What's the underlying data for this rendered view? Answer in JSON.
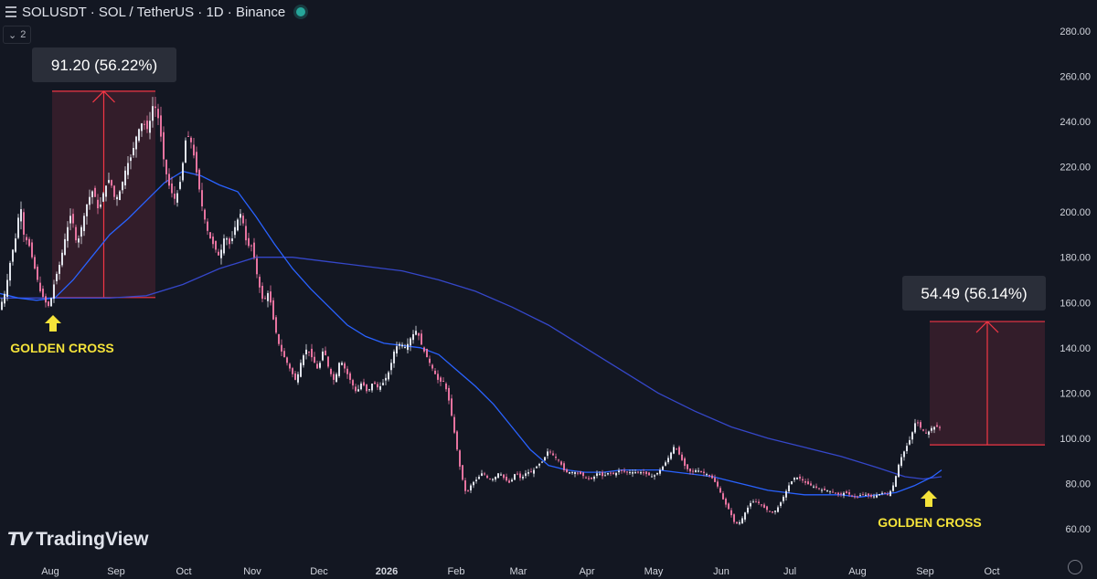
{
  "header": {
    "symbol_line": "SOLUSDT · SOL / TetherUS · 1D · Binance",
    "collapse_count": "2"
  },
  "logo_text": "TradingView",
  "colors": {
    "background": "#131722",
    "up_candle": "#e0e3eb",
    "down_candle": "#e6739f",
    "ma_short": "#2962ff",
    "ma_long": "#3547c9",
    "measure_line": "#f23645",
    "measure_fill": "#3a1f2b",
    "annotation": "#f5e33a"
  },
  "chart_data": {
    "type": "candlestick",
    "y_axis": {
      "ticks": [
        60,
        80,
        100,
        120,
        140,
        160,
        180,
        200,
        220,
        240,
        260,
        280
      ],
      "tick_labels": [
        "60.00",
        "80.00",
        "100.00",
        "120.00",
        "140.00",
        "160.00",
        "180.00",
        "200.00",
        "220.00",
        "240.00",
        "260.00",
        "280.00"
      ],
      "ylim": [
        55,
        288
      ]
    },
    "x_axis": {
      "labels": [
        "Aug",
        "Sep",
        "Oct",
        "Nov",
        "Dec",
        "2026",
        "Feb",
        "Mar",
        "Apr",
        "May",
        "Jun",
        "Jul",
        "Aug",
        "Sep",
        "Oct"
      ]
    },
    "price_path": [
      [
        0,
        158
      ],
      [
        6,
        165
      ],
      [
        12,
        180
      ],
      [
        18,
        190
      ],
      [
        22,
        205
      ],
      [
        26,
        190
      ],
      [
        32,
        185
      ],
      [
        38,
        175
      ],
      [
        44,
        165
      ],
      [
        50,
        160
      ],
      [
        54,
        158
      ],
      [
        60,
        170
      ],
      [
        66,
        178
      ],
      [
        72,
        190
      ],
      [
        78,
        200
      ],
      [
        84,
        185
      ],
      [
        90,
        195
      ],
      [
        96,
        205
      ],
      [
        102,
        210
      ],
      [
        108,
        200
      ],
      [
        114,
        210
      ],
      [
        120,
        215
      ],
      [
        126,
        205
      ],
      [
        132,
        210
      ],
      [
        138,
        220
      ],
      [
        144,
        225
      ],
      [
        150,
        235
      ],
      [
        156,
        240
      ],
      [
        162,
        236
      ],
      [
        168,
        249
      ],
      [
        174,
        240
      ],
      [
        180,
        220
      ],
      [
        186,
        210
      ],
      [
        192,
        205
      ],
      [
        198,
        215
      ],
      [
        204,
        235
      ],
      [
        210,
        230
      ],
      [
        216,
        215
      ],
      [
        222,
        200
      ],
      [
        228,
        190
      ],
      [
        234,
        185
      ],
      [
        240,
        180
      ],
      [
        246,
        190
      ],
      [
        252,
        185
      ],
      [
        258,
        195
      ],
      [
        264,
        200
      ],
      [
        270,
        185
      ],
      [
        276,
        185
      ],
      [
        282,
        170
      ],
      [
        288,
        160
      ],
      [
        294,
        165
      ],
      [
        300,
        150
      ],
      [
        306,
        140
      ],
      [
        312,
        135
      ],
      [
        318,
        130
      ],
      [
        324,
        125
      ],
      [
        330,
        135
      ],
      [
        336,
        140
      ],
      [
        342,
        135
      ],
      [
        348,
        130
      ],
      [
        354,
        140
      ],
      [
        360,
        130
      ],
      [
        366,
        125
      ],
      [
        372,
        135
      ],
      [
        378,
        130
      ],
      [
        384,
        125
      ],
      [
        390,
        120
      ],
      [
        396,
        125
      ],
      [
        402,
        120
      ],
      [
        408,
        125
      ],
      [
        414,
        122
      ],
      [
        420,
        125
      ],
      [
        426,
        130
      ],
      [
        432,
        140
      ],
      [
        438,
        142
      ],
      [
        444,
        140
      ],
      [
        450,
        145
      ],
      [
        456,
        148
      ],
      [
        462,
        140
      ],
      [
        468,
        135
      ],
      [
        474,
        130
      ],
      [
        480,
        125
      ],
      [
        486,
        125
      ],
      [
        492,
        115
      ],
      [
        498,
        100
      ],
      [
        504,
        85
      ],
      [
        510,
        75
      ],
      [
        516,
        80
      ],
      [
        522,
        82
      ],
      [
        528,
        85
      ],
      [
        534,
        82
      ],
      [
        540,
        82
      ],
      [
        546,
        85
      ],
      [
        552,
        82
      ],
      [
        558,
        80
      ],
      [
        564,
        85
      ],
      [
        570,
        82
      ],
      [
        576,
        85
      ],
      [
        582,
        85
      ],
      [
        588,
        88
      ],
      [
        594,
        90
      ],
      [
        600,
        95
      ],
      [
        606,
        92
      ],
      [
        612,
        90
      ],
      [
        618,
        85
      ],
      [
        624,
        85
      ],
      [
        630,
        85
      ],
      [
        636,
        84
      ],
      [
        642,
        82
      ],
      [
        648,
        82
      ],
      [
        654,
        85
      ],
      [
        660,
        83
      ],
      [
        666,
        85
      ],
      [
        672,
        84
      ],
      [
        678,
        86
      ],
      [
        684,
        85
      ],
      [
        690,
        85
      ],
      [
        696,
        85
      ],
      [
        702,
        85
      ],
      [
        708,
        84
      ],
      [
        714,
        83
      ],
      [
        720,
        85
      ],
      [
        726,
        88
      ],
      [
        732,
        92
      ],
      [
        738,
        97
      ],
      [
        744,
        92
      ],
      [
        750,
        87
      ],
      [
        756,
        85
      ],
      [
        762,
        86
      ],
      [
        768,
        85
      ],
      [
        774,
        84
      ],
      [
        780,
        82
      ],
      [
        786,
        78
      ],
      [
        792,
        72
      ],
      [
        798,
        68
      ],
      [
        804,
        62
      ],
      [
        810,
        63
      ],
      [
        816,
        68
      ],
      [
        822,
        72
      ],
      [
        828,
        72
      ],
      [
        834,
        70
      ],
      [
        840,
        68
      ],
      [
        846,
        67
      ],
      [
        852,
        70
      ],
      [
        858,
        75
      ],
      [
        864,
        80
      ],
      [
        870,
        83
      ],
      [
        876,
        82
      ],
      [
        882,
        80
      ],
      [
        888,
        79
      ],
      [
        894,
        78
      ],
      [
        900,
        77
      ],
      [
        906,
        77
      ],
      [
        912,
        76
      ],
      [
        918,
        75
      ],
      [
        924,
        76
      ],
      [
        930,
        75
      ],
      [
        936,
        74
      ],
      [
        942,
        75
      ],
      [
        948,
        75
      ],
      [
        954,
        74
      ],
      [
        960,
        75
      ],
      [
        966,
        76
      ],
      [
        972,
        75
      ],
      [
        978,
        80
      ],
      [
        984,
        90
      ],
      [
        990,
        95
      ],
      [
        996,
        100
      ],
      [
        1002,
        108
      ],
      [
        1008,
        104
      ],
      [
        1014,
        102
      ],
      [
        1020,
        105
      ],
      [
        1026,
        105
      ],
      [
        1030,
        104
      ]
    ],
    "ma_short": [
      [
        0,
        164
      ],
      [
        20,
        162
      ],
      [
        40,
        161
      ],
      [
        60,
        162
      ],
      [
        80,
        170
      ],
      [
        100,
        180
      ],
      [
        120,
        190
      ],
      [
        140,
        197
      ],
      [
        160,
        205
      ],
      [
        180,
        213
      ],
      [
        200,
        218
      ],
      [
        220,
        216
      ],
      [
        240,
        212
      ],
      [
        260,
        209
      ],
      [
        280,
        198
      ],
      [
        300,
        186
      ],
      [
        320,
        175
      ],
      [
        340,
        166
      ],
      [
        360,
        158
      ],
      [
        380,
        150
      ],
      [
        400,
        145
      ],
      [
        420,
        142
      ],
      [
        440,
        141
      ],
      [
        460,
        140
      ],
      [
        480,
        137
      ],
      [
        500,
        130
      ],
      [
        520,
        123
      ],
      [
        540,
        115
      ],
      [
        560,
        105
      ],
      [
        580,
        95
      ],
      [
        600,
        88
      ],
      [
        620,
        86
      ],
      [
        640,
        85
      ],
      [
        660,
        85
      ],
      [
        680,
        86
      ],
      [
        700,
        86
      ],
      [
        720,
        86
      ],
      [
        740,
        85
      ],
      [
        760,
        84
      ],
      [
        780,
        83
      ],
      [
        800,
        81
      ],
      [
        820,
        79
      ],
      [
        840,
        77
      ],
      [
        860,
        76
      ],
      [
        880,
        75
      ],
      [
        900,
        75
      ],
      [
        920,
        75
      ],
      [
        940,
        74
      ],
      [
        960,
        75
      ],
      [
        980,
        76
      ],
      [
        1000,
        79
      ],
      [
        1020,
        83
      ],
      [
        1030,
        86
      ]
    ],
    "ma_long": [
      [
        0,
        162
      ],
      [
        40,
        162
      ],
      [
        80,
        162
      ],
      [
        120,
        162
      ],
      [
        160,
        163
      ],
      [
        200,
        168
      ],
      [
        240,
        175
      ],
      [
        280,
        180
      ],
      [
        320,
        180
      ],
      [
        360,
        178
      ],
      [
        400,
        176
      ],
      [
        440,
        174
      ],
      [
        480,
        170
      ],
      [
        520,
        165
      ],
      [
        560,
        158
      ],
      [
        600,
        150
      ],
      [
        640,
        140
      ],
      [
        680,
        130
      ],
      [
        720,
        120
      ],
      [
        760,
        112
      ],
      [
        800,
        105
      ],
      [
        840,
        100
      ],
      [
        880,
        96
      ],
      [
        920,
        92
      ],
      [
        960,
        87
      ],
      [
        990,
        83
      ],
      [
        1010,
        82
      ],
      [
        1030,
        83
      ]
    ],
    "annotations": [
      {
        "type": "measure",
        "label": "91.20 (56.22%)",
        "from_price": 162.2,
        "to_price": 253.4
      },
      {
        "type": "measure",
        "label": "54.49 (56.14%)",
        "from_price": 97.1,
        "to_price": 151.6
      },
      {
        "type": "marker",
        "label": "GOLDEN CROSS",
        "price": 161
      },
      {
        "type": "marker",
        "label": "GOLDEN CROSS",
        "price": 82
      }
    ]
  }
}
